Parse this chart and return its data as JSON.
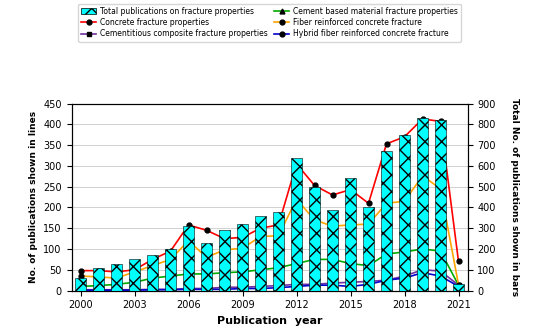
{
  "years": [
    2000,
    2001,
    2002,
    2003,
    2004,
    2005,
    2006,
    2007,
    2008,
    2009,
    2010,
    2011,
    2012,
    2013,
    2014,
    2015,
    2016,
    2017,
    2018,
    2019,
    2020,
    2021
  ],
  "bar_values": [
    60,
    110,
    130,
    150,
    170,
    200,
    310,
    230,
    290,
    320,
    360,
    380,
    640,
    500,
    390,
    540,
    400,
    670,
    750,
    830,
    820,
    30
  ],
  "concrete_fracture": [
    48,
    48,
    45,
    50,
    75,
    95,
    158,
    145,
    125,
    128,
    150,
    158,
    305,
    253,
    230,
    243,
    210,
    353,
    370,
    413,
    407,
    70
  ],
  "cementitious_composite": [
    2,
    2,
    2,
    2,
    3,
    3,
    5,
    5,
    8,
    8,
    10,
    12,
    15,
    15,
    18,
    20,
    22,
    25,
    35,
    50,
    47,
    13
  ],
  "cement_based": [
    10,
    12,
    15,
    20,
    30,
    35,
    40,
    40,
    43,
    45,
    50,
    55,
    65,
    75,
    75,
    65,
    60,
    88,
    93,
    100,
    95,
    13
  ],
  "fiber_reinforced": [
    35,
    33,
    30,
    45,
    60,
    75,
    120,
    80,
    98,
    102,
    130,
    132,
    220,
    170,
    155,
    158,
    160,
    210,
    215,
    276,
    245,
    14
  ],
  "hybrid_fiber": [
    1,
    1,
    1,
    1,
    2,
    2,
    3,
    3,
    3,
    5,
    5,
    7,
    10,
    13,
    13,
    10,
    15,
    25,
    30,
    43,
    35,
    10
  ],
  "bar_color": "#00ffff",
  "concrete_color": "#ff0000",
  "cementitious_color": "#7030a0",
  "cement_based_color": "#00aa00",
  "fiber_reinforced_color": "#ffa500",
  "hybrid_fiber_color": "#0000cd",
  "left_ylim": [
    0,
    450
  ],
  "right_ylim": [
    0,
    900
  ],
  "left_yticks": [
    0,
    50,
    100,
    150,
    200,
    250,
    300,
    350,
    400,
    450
  ],
  "right_yticks": [
    0,
    100,
    200,
    300,
    400,
    500,
    600,
    700,
    800,
    900
  ],
  "xticks": [
    2000,
    2003,
    2006,
    2009,
    2012,
    2015,
    2018,
    2021
  ],
  "xlabel": "Publication  year",
  "ylabel_left": "No. of publications shown in lines",
  "ylabel_right": "Total No. of publications shown in bars",
  "legend_entries": [
    "Total publications on fracture properties",
    "Concrete fracture properties",
    "Cementitious composite fracture properties",
    "Cement based material fracture properties",
    "Fiber reinforced concrete fracture",
    "Hybrid fiber reinforced concrete fracture"
  ],
  "figsize": [
    5.5,
    3.34
  ],
  "dpi": 100
}
